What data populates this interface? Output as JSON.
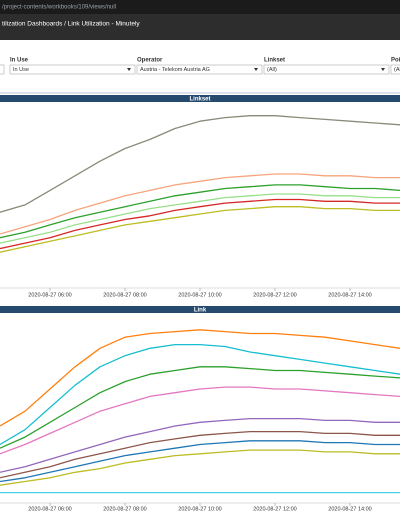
{
  "browser": {
    "url": "/project-contents/workbooks/109/views/null"
  },
  "header": {
    "title": "tilization Dashboards / Link Utilization - Minutely"
  },
  "filters": [
    {
      "label": "In Use",
      "value": "In Use"
    },
    {
      "label": "Operator",
      "value": "Austria - Telekom Austria AG"
    },
    {
      "label": "Linkset",
      "value": "(All)"
    },
    {
      "label": "Poi",
      "value": "(All"
    }
  ],
  "chart_data": [
    {
      "type": "line",
      "title": "Linkset",
      "x": [
        "2020-08-27 04:40",
        "2020-08-27 05:20",
        "2020-08-27 06:00",
        "2020-08-27 06:40",
        "2020-08-27 07:20",
        "2020-08-27 08:00",
        "2020-08-27 08:40",
        "2020-08-27 09:20",
        "2020-08-27 10:00",
        "2020-08-27 10:40",
        "2020-08-27 11:20",
        "2020-08-27 12:00",
        "2020-08-27 12:40",
        "2020-08-27 13:20",
        "2020-08-27 14:00",
        "2020-08-27 14:40",
        "2020-08-27 15:20"
      ],
      "xlim": [
        "2020-08-27 04:40",
        "2020-08-27 15:20"
      ],
      "xticks": [
        "2020-08-27 06:00",
        "2020-08-27 08:00",
        "2020-08-27 10:00",
        "2020-08-27 12:00",
        "2020-08-27 14:00"
      ],
      "ylim": [
        0,
        100
      ],
      "series": [
        {
          "color": "#8a8a7a",
          "values": [
            40,
            44,
            52,
            60,
            68,
            75,
            80,
            86,
            90,
            92,
            93,
            93,
            92,
            91,
            90,
            89,
            88
          ]
        },
        {
          "color": "#f7a47c",
          "values": [
            28,
            32,
            36,
            41,
            45,
            49,
            52,
            55,
            57,
            59,
            60,
            61,
            61,
            60,
            60,
            59,
            59
          ]
        },
        {
          "color": "#2ca02c",
          "values": [
            26,
            29,
            33,
            37,
            40,
            43,
            46,
            49,
            51,
            53,
            54,
            55,
            55,
            54,
            53,
            53,
            52
          ]
        },
        {
          "color": "#98df8a",
          "values": [
            23,
            26,
            29,
            33,
            36,
            39,
            42,
            44,
            46,
            48,
            49,
            50,
            50,
            49,
            49,
            48,
            48
          ]
        },
        {
          "color": "#d62728",
          "values": [
            20,
            23,
            26,
            30,
            33,
            36,
            38,
            41,
            43,
            45,
            46,
            47,
            47,
            46,
            46,
            45,
            45
          ]
        },
        {
          "color": "#bcbd22",
          "values": [
            18,
            21,
            24,
            27,
            30,
            33,
            35,
            37,
            39,
            41,
            42,
            43,
            43,
            42,
            42,
            41,
            41
          ]
        }
      ]
    },
    {
      "type": "line",
      "title": "Link",
      "x": [
        "2020-08-27 04:40",
        "2020-08-27 05:20",
        "2020-08-27 06:00",
        "2020-08-27 06:40",
        "2020-08-27 07:20",
        "2020-08-27 08:00",
        "2020-08-27 08:40",
        "2020-08-27 09:20",
        "2020-08-27 10:00",
        "2020-08-27 10:40",
        "2020-08-27 11:20",
        "2020-08-27 12:00",
        "2020-08-27 12:40",
        "2020-08-27 13:20",
        "2020-08-27 14:00",
        "2020-08-27 14:40",
        "2020-08-27 15:20"
      ],
      "xlim": [
        "2020-08-27 04:40",
        "2020-08-27 15:20"
      ],
      "xticks": [
        "2020-08-27 06:00",
        "2020-08-27 08:00",
        "2020-08-27 10:00",
        "2020-08-27 12:00",
        "2020-08-27 14:00"
      ],
      "ylim": [
        0,
        100
      ],
      "series": [
        {
          "color": "#ff7f0e",
          "values": [
            40,
            48,
            60,
            72,
            82,
            88,
            90,
            91,
            92,
            91,
            90,
            90,
            89,
            88,
            86,
            84,
            82
          ]
        },
        {
          "color": "#17becf",
          "values": [
            30,
            38,
            50,
            62,
            72,
            78,
            82,
            84,
            84,
            83,
            80,
            78,
            76,
            74,
            72,
            70,
            68
          ]
        },
        {
          "color": "#2ca02c",
          "values": [
            28,
            34,
            42,
            50,
            58,
            64,
            68,
            70,
            72,
            72,
            71,
            70,
            70,
            69,
            68,
            67,
            66
          ]
        },
        {
          "color": "#e377c2",
          "values": [
            25,
            30,
            36,
            42,
            48,
            52,
            56,
            58,
            60,
            61,
            61,
            60,
            60,
            59,
            58,
            57,
            56
          ]
        },
        {
          "color": "#9467bd",
          "values": [
            15,
            18,
            22,
            26,
            30,
            34,
            37,
            40,
            42,
            43,
            44,
            44,
            44,
            43,
            43,
            42,
            42
          ]
        },
        {
          "color": "#8c564b",
          "values": [
            12,
            15,
            18,
            22,
            25,
            28,
            31,
            33,
            35,
            36,
            37,
            37,
            37,
            36,
            36,
            35,
            35
          ]
        },
        {
          "color": "#1f77b4",
          "values": [
            10,
            12,
            15,
            18,
            21,
            24,
            26,
            28,
            30,
            31,
            32,
            32,
            32,
            31,
            31,
            30,
            30
          ]
        },
        {
          "color": "#bcbd22",
          "values": [
            8,
            10,
            12,
            15,
            17,
            20,
            22,
            24,
            25,
            26,
            27,
            27,
            27,
            26,
            26,
            25,
            25
          ]
        },
        {
          "color": "#4dd0e1",
          "values": [
            4,
            4,
            4,
            4,
            4,
            4,
            4,
            4,
            4,
            4,
            4,
            4,
            4,
            4,
            4,
            4,
            4
          ]
        }
      ]
    }
  ]
}
